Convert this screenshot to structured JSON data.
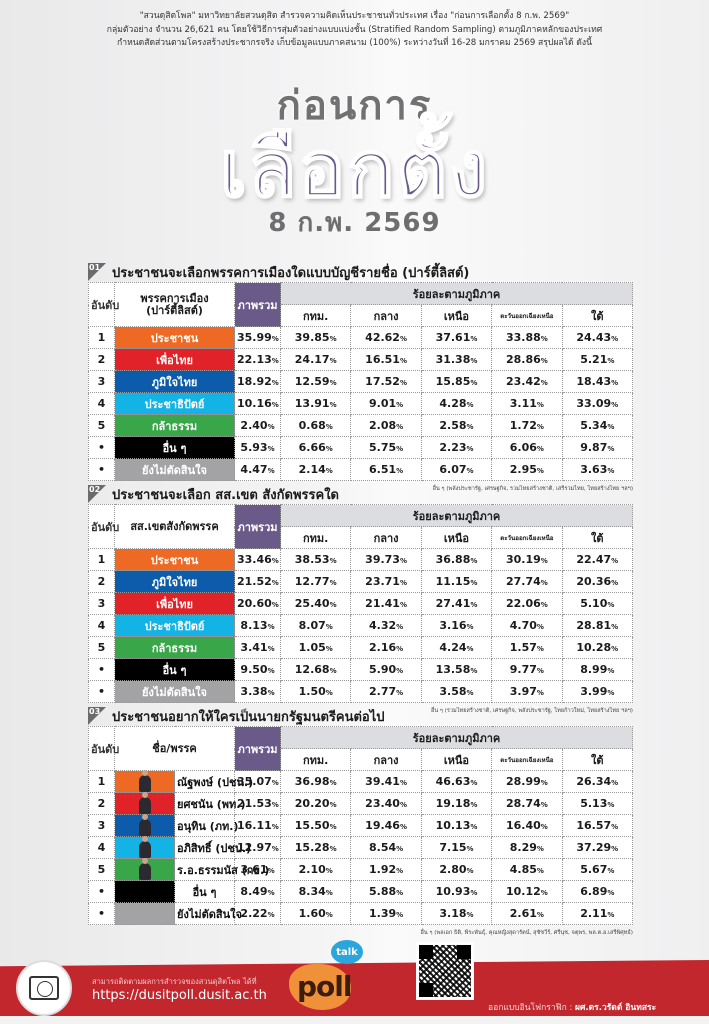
{
  "intro": {
    "line1": "\"สวนดุสิตโพล\" มหาวิทยาลัยสวนดุสิต สำรวจความคิดเห็นประชาชนทั่วประเทศ เรื่อง \"ก่อนการเลือกตั้ง 8 ก.พ. 2569\"",
    "line2": "กลุ่มตัวอย่าง จำนวน 26,621 คน โดยใช้วิธีการสุ่มตัวอย่างแบบแบ่งชั้น (Stratified Random Sampling) ตามภูมิภาคหลักของประเทศ",
    "line3": "กำหนดสัดส่วนตามโครงสร้างประชากรจริง เก็บข้อมูลแบบภาคสนาม (100%) ระหว่างวันที่ 16-28 มกราคม 2569 สรุปผลได้ ดังนี้"
  },
  "hero": {
    "line1": "ก่อนการ",
    "line2": "เลือกตั้ง",
    "line3": "8 ก.พ. 2569"
  },
  "headers": {
    "rank": "อันดับ",
    "total": "ภาพรวม",
    "region_group": "ร้อยละตามภูมิภาค",
    "regions": [
      "กทม.",
      "กลาง",
      "เหนือ",
      "ตะวันออกเฉียงเหนือ",
      "ใต้"
    ]
  },
  "colors": {
    "prachachon": "#ee6a24",
    "phuea_thai": "#e12228",
    "bhumjaithai": "#0d5cab",
    "democrat": "#14b3e6",
    "kla_tham": "#3aa64a",
    "others": "#000000",
    "undecided": "#a3a3a6",
    "accent_purple": "#6a5a8a",
    "footer_red": "#c1272d"
  },
  "section1": {
    "num": "01",
    "title": "ประชาชนจะเลือกพรรคการเมืองใดแบบบัญชีรายชื่อ (ปาร์ตี้ลิสต์)",
    "party_header_1": "พรรคการเมือง",
    "party_header_2": "(ปาร์ตี้ลิสต์)",
    "rows": [
      {
        "rank": "1",
        "party": "ประชาชน",
        "color": "#ee6a24",
        "values": [
          "35.99",
          "39.85",
          "42.62",
          "37.61",
          "33.88",
          "24.43"
        ]
      },
      {
        "rank": "2",
        "party": "เพื่อไทย",
        "color": "#e12228",
        "values": [
          "22.13",
          "24.17",
          "16.51",
          "31.38",
          "28.86",
          "5.21"
        ]
      },
      {
        "rank": "3",
        "party": "ภูมิใจไทย",
        "color": "#0d5cab",
        "values": [
          "18.92",
          "12.59",
          "17.52",
          "15.85",
          "23.42",
          "18.43"
        ]
      },
      {
        "rank": "4",
        "party": "ประชาธิปัตย์",
        "color": "#14b3e6",
        "values": [
          "10.16",
          "13.91",
          "9.01",
          "4.28",
          "3.11",
          "33.09"
        ]
      },
      {
        "rank": "5",
        "party": "กล้าธรรม",
        "color": "#3aa64a",
        "values": [
          "2.40",
          "0.68",
          "2.08",
          "2.58",
          "1.72",
          "5.34"
        ]
      },
      {
        "rank": "•",
        "party": "อื่น ๆ",
        "color": "#000000",
        "values": [
          "5.93",
          "6.66",
          "5.75",
          "2.23",
          "6.06",
          "9.87"
        ]
      },
      {
        "rank": "•",
        "party": "ยังไม่ตัดสินใจ",
        "color": "#a3a3a6",
        "values": [
          "4.47",
          "2.14",
          "6.51",
          "6.07",
          "2.95",
          "3.63"
        ]
      }
    ],
    "note": "อื่น ๆ (พลังประชารัฐ, เศรษฐกิจ, รวมไทยสร้างชาติ, เสรีรวมไทย, ไทยสร้างไทย ฯลฯ)"
  },
  "section2": {
    "num": "02",
    "title": "ประชาชนจะเลือก สส.เขต สังกัดพรรคใด",
    "party_header": "สส.เขตสังกัดพรรค",
    "rows": [
      {
        "rank": "1",
        "party": "ประชาชน",
        "color": "#ee6a24",
        "values": [
          "33.46",
          "38.53",
          "39.73",
          "36.88",
          "30.19",
          "22.47"
        ]
      },
      {
        "rank": "2",
        "party": "ภูมิใจไทย",
        "color": "#0d5cab",
        "values": [
          "21.52",
          "12.77",
          "23.71",
          "11.15",
          "27.74",
          "20.36"
        ]
      },
      {
        "rank": "3",
        "party": "เพื่อไทย",
        "color": "#e12228",
        "values": [
          "20.60",
          "25.40",
          "21.41",
          "27.41",
          "22.06",
          "5.10"
        ]
      },
      {
        "rank": "4",
        "party": "ประชาธิปัตย์",
        "color": "#14b3e6",
        "values": [
          "8.13",
          "8.07",
          "4.32",
          "3.16",
          "4.70",
          "28.81"
        ]
      },
      {
        "rank": "5",
        "party": "กล้าธรรม",
        "color": "#3aa64a",
        "values": [
          "3.41",
          "1.05",
          "2.16",
          "4.24",
          "1.57",
          "10.28"
        ]
      },
      {
        "rank": "•",
        "party": "อื่น ๆ",
        "color": "#000000",
        "values": [
          "9.50",
          "12.68",
          "5.90",
          "13.58",
          "9.77",
          "8.99"
        ]
      },
      {
        "rank": "•",
        "party": "ยังไม่ตัดสินใจ",
        "color": "#a3a3a6",
        "values": [
          "3.38",
          "1.50",
          "2.77",
          "3.58",
          "3.97",
          "3.99"
        ]
      }
    ],
    "note": "อื่น ๆ (รวมไทยสร้างชาติ, เศรษฐกิจ, พลังประชารัฐ, ไทยก้าวใหม่, ไทยสร้างไทย ฯลฯ)"
  },
  "section3": {
    "num": "03",
    "title": "ประชาชนอยากให้ใครเป็นนายกรัฐมนตรีคนต่อไป",
    "party_header": "ชื่อ/พรรค",
    "rows": [
      {
        "rank": "1",
        "name": "ณัฐพงษ์ (ปชน.)",
        "color": "#ee6a24",
        "photo": true,
        "values": [
          "35.07",
          "36.98",
          "39.41",
          "46.63",
          "28.99",
          "26.34"
        ]
      },
      {
        "rank": "2",
        "name": "ยศชนัน (พท.)",
        "color": "#e12228",
        "photo": true,
        "values": [
          "21.53",
          "20.20",
          "23.40",
          "19.18",
          "28.74",
          "5.13"
        ]
      },
      {
        "rank": "3",
        "name": "อนุทิน (ภท.)",
        "color": "#0d5cab",
        "photo": true,
        "values": [
          "16.11",
          "15.50",
          "19.46",
          "10.13",
          "16.40",
          "16.57"
        ]
      },
      {
        "rank": "4",
        "name": "อภิสิทธิ์ (ปชป.)",
        "color": "#14b3e6",
        "photo": true,
        "values": [
          "12.97",
          "15.28",
          "8.54",
          "7.15",
          "8.29",
          "37.29"
        ]
      },
      {
        "rank": "5",
        "name": "ร.อ.ธรรมนัส (กธ.)",
        "color": "#3aa64a",
        "photo": true,
        "values": [
          "3.61",
          "2.10",
          "1.92",
          "2.80",
          "4.85",
          "5.67"
        ]
      },
      {
        "rank": "•",
        "name": "อื่น ๆ",
        "color": "#000000",
        "photo": false,
        "values": [
          "8.49",
          "8.34",
          "5.88",
          "10.93",
          "10.12",
          "6.89"
        ]
      },
      {
        "rank": "•",
        "name": "ยังไม่ตัดสินใจ",
        "color": "#a3a3a6",
        "photo": false,
        "values": [
          "2.22",
          "1.60",
          "1.39",
          "3.18",
          "2.61",
          "2.11"
        ]
      }
    ],
    "note": "อื่น ๆ (พลเอก ธิติ, พีระพันธุ์, คุณหญิงสุดารัตน์, สุชัชวีร์, ศรีนุช, จตุพร, พล.ต.อ.เสรีพิศุทธ์)"
  },
  "footer": {
    "follow_text": "สามารถติดตามผลการสำรวจของสวนดุสิตโพล ได้ที่",
    "url": "https://dusitpoll.dusit.ac.th",
    "poll_logo_text": "poll",
    "talk_text": "talk",
    "designer_label": "ออกแบบอินโฟกราฟิก : ",
    "designer_name": "ผศ.ดร.วรัตต์ อินทสระ"
  }
}
